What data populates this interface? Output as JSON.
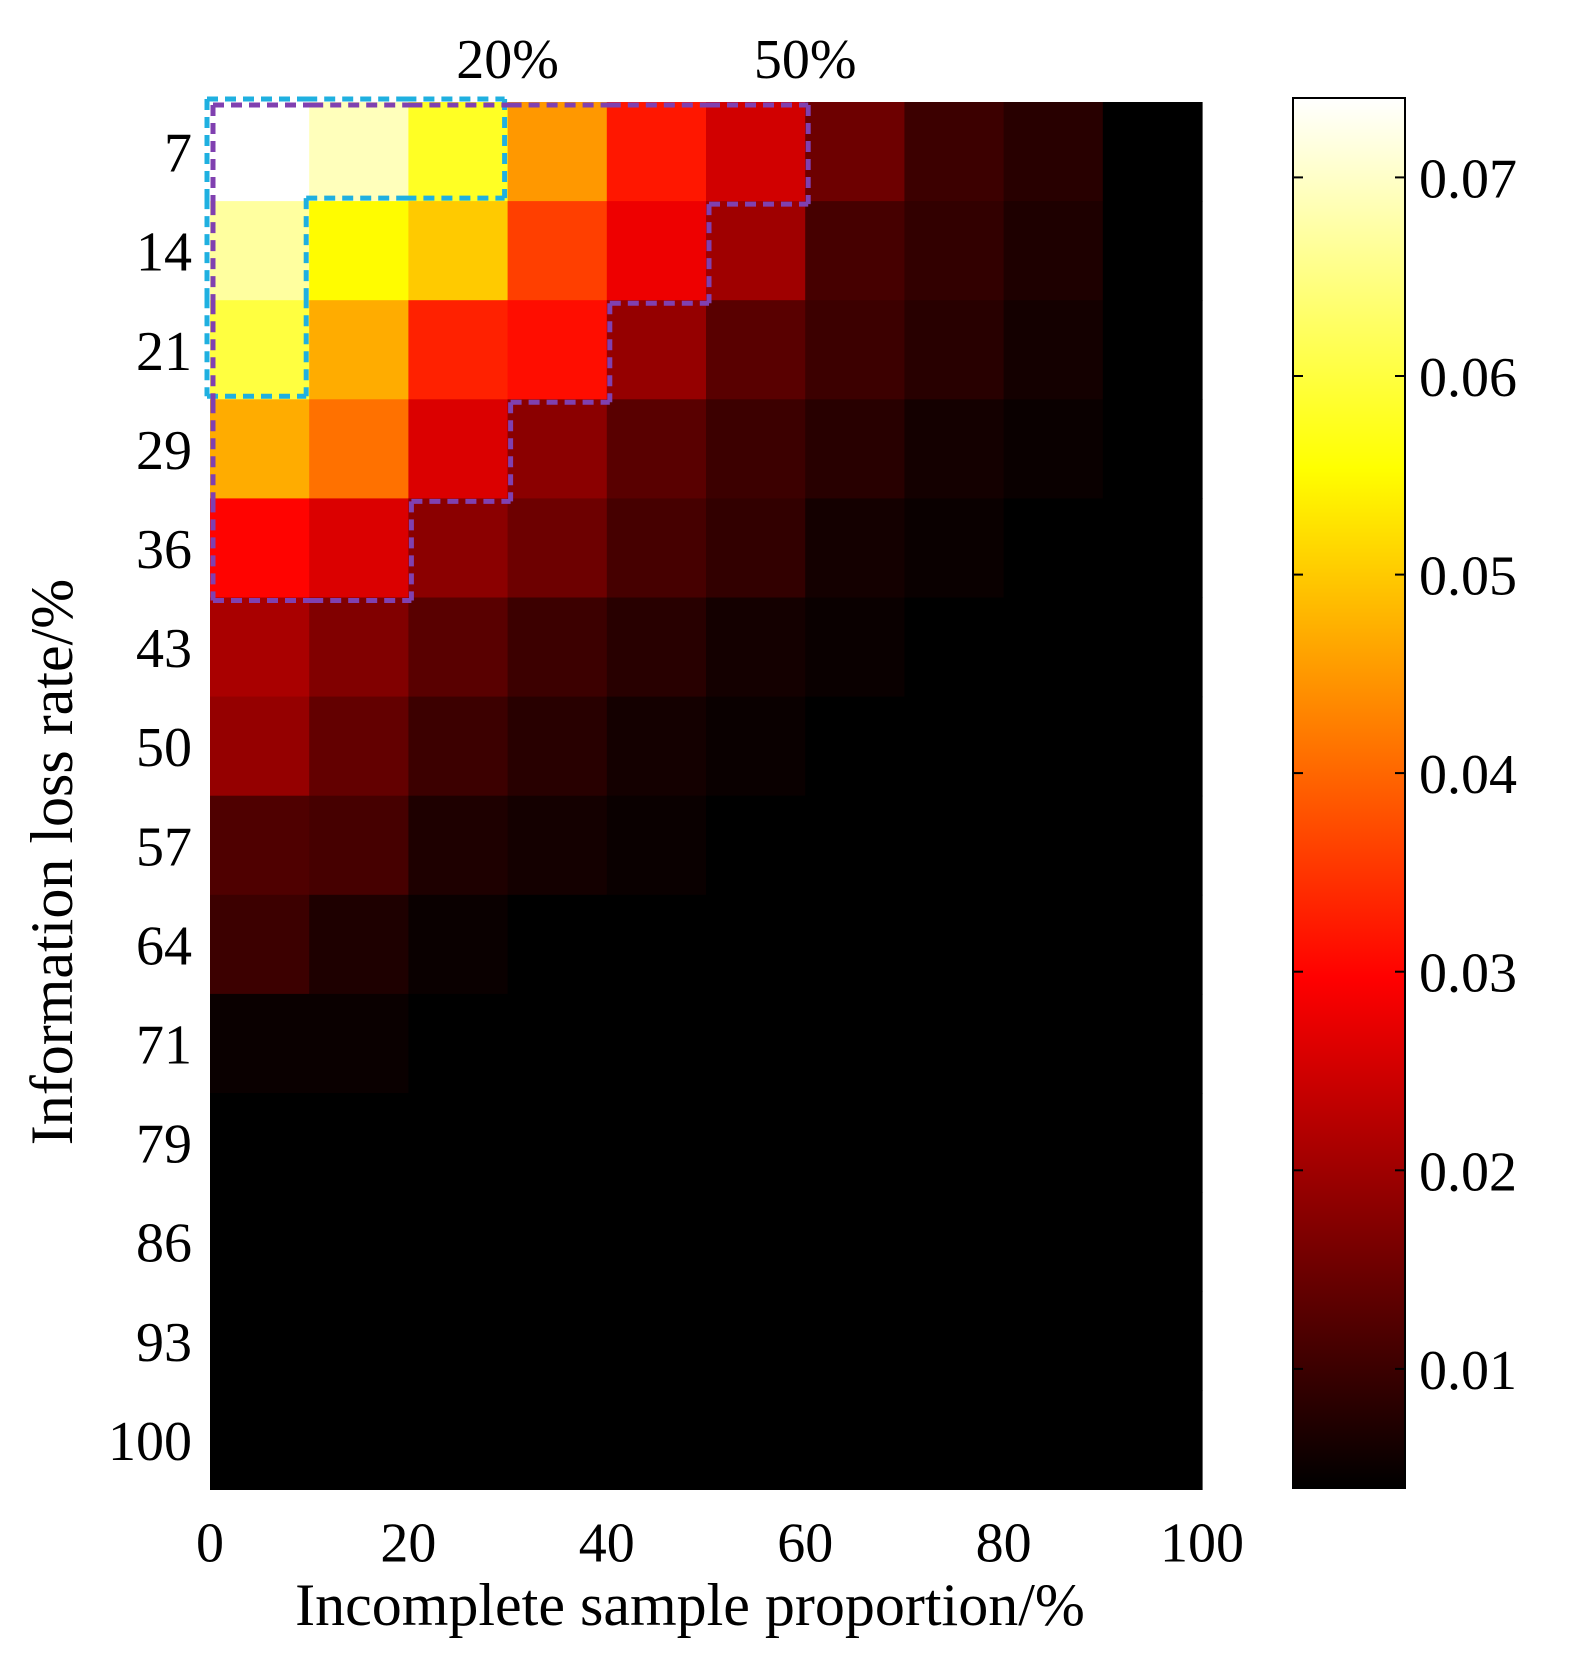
{
  "chart_data": {
    "type": "heatmap",
    "xlabel": "Incomplete sample proportion/%",
    "ylabel": "Information loss rate/%",
    "x_tick_labels": [
      "0",
      "20",
      "40",
      "60",
      "80",
      "100"
    ],
    "x_tick_values": [
      0,
      20,
      40,
      60,
      80,
      100
    ],
    "y_categories": [
      "7",
      "14",
      "21",
      "29",
      "36",
      "43",
      "50",
      "57",
      "64",
      "71",
      "79",
      "86",
      "93",
      "100"
    ],
    "x_columns": [
      0,
      10,
      20,
      30,
      40,
      50,
      60,
      70,
      80,
      90
    ],
    "values": [
      [
        0.074,
        0.069,
        0.058,
        0.045,
        0.032,
        0.025,
        0.015,
        0.01,
        0.008,
        0.004
      ],
      [
        0.067,
        0.055,
        0.05,
        0.036,
        0.028,
        0.02,
        0.011,
        0.009,
        0.007,
        0.004
      ],
      [
        0.06,
        0.047,
        0.033,
        0.031,
        0.019,
        0.013,
        0.01,
        0.008,
        0.006,
        0.004
      ],
      [
        0.047,
        0.041,
        0.026,
        0.018,
        0.013,
        0.01,
        0.008,
        0.006,
        0.005,
        0.004
      ],
      [
        0.03,
        0.026,
        0.018,
        0.015,
        0.011,
        0.009,
        0.006,
        0.005,
        0.004,
        0.004
      ],
      [
        0.021,
        0.017,
        0.013,
        0.01,
        0.008,
        0.006,
        0.005,
        0.004,
        0.004,
        0.004
      ],
      [
        0.019,
        0.014,
        0.01,
        0.008,
        0.006,
        0.005,
        0.004,
        0.004,
        0.004,
        0.004
      ],
      [
        0.012,
        0.011,
        0.007,
        0.006,
        0.005,
        0.004,
        0.004,
        0.004,
        0.004,
        0.004
      ],
      [
        0.01,
        0.007,
        0.005,
        0.004,
        0.004,
        0.004,
        0.004,
        0.004,
        0.004,
        0.004
      ],
      [
        0.005,
        0.005,
        0.004,
        0.004,
        0.004,
        0.004,
        0.004,
        0.004,
        0.004,
        0.004
      ],
      [
        0.004,
        0.004,
        0.004,
        0.004,
        0.004,
        0.004,
        0.004,
        0.004,
        0.004,
        0.004
      ],
      [
        0.004,
        0.004,
        0.004,
        0.004,
        0.004,
        0.004,
        0.004,
        0.004,
        0.004,
        0.004
      ],
      [
        0.004,
        0.004,
        0.004,
        0.004,
        0.004,
        0.004,
        0.004,
        0.004,
        0.004,
        0.004
      ],
      [
        0.004,
        0.004,
        0.004,
        0.004,
        0.004,
        0.004,
        0.004,
        0.004,
        0.004,
        0.004
      ]
    ],
    "colormap": "hot",
    "colorbar": {
      "min": 0.004,
      "max": 0.074,
      "tick_values": [
        0.01,
        0.02,
        0.03,
        0.04,
        0.05,
        0.06,
        0.07
      ],
      "tick_labels": [
        "0.01",
        "0.02",
        "0.03",
        "0.04",
        "0.05",
        "0.06",
        "0.07"
      ]
    },
    "annotations": [
      {
        "label": "20%",
        "color": "#1fb0e0",
        "style": "dashed",
        "region_cells": [
          [
            0,
            0
          ],
          [
            0,
            1
          ],
          [
            0,
            2
          ],
          [
            1,
            0
          ],
          [
            2,
            0
          ]
        ]
      },
      {
        "label": "50%",
        "color": "#8040b0",
        "style": "dashed",
        "region_cells": [
          [
            0,
            0
          ],
          [
            0,
            1
          ],
          [
            0,
            2
          ],
          [
            0,
            3
          ],
          [
            0,
            4
          ],
          [
            0,
            5
          ],
          [
            1,
            0
          ],
          [
            1,
            1
          ],
          [
            1,
            2
          ],
          [
            1,
            3
          ],
          [
            1,
            4
          ],
          [
            2,
            0
          ],
          [
            2,
            1
          ],
          [
            2,
            2
          ],
          [
            2,
            3
          ],
          [
            3,
            0
          ],
          [
            3,
            1
          ],
          [
            3,
            2
          ],
          [
            4,
            0
          ],
          [
            4,
            1
          ]
        ]
      }
    ]
  }
}
